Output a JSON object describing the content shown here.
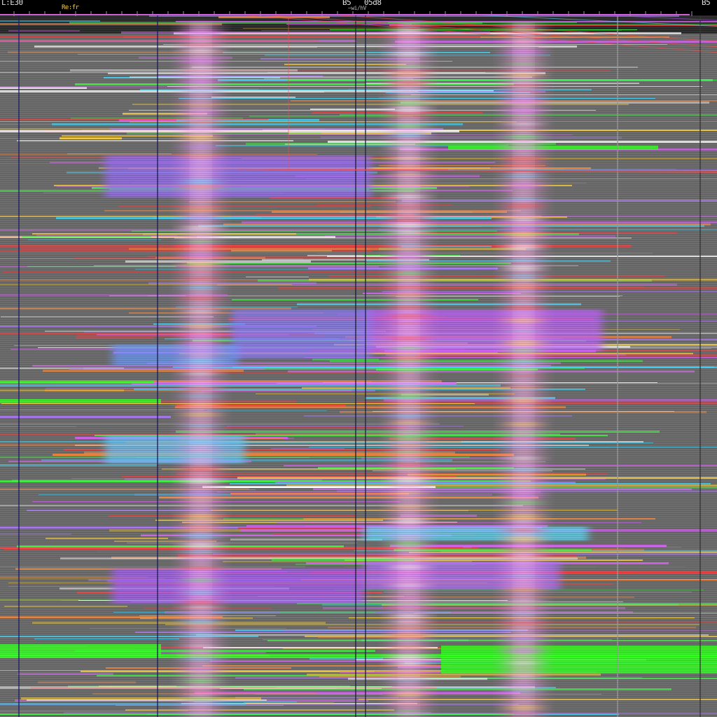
{
  "header": {
    "left_label": "L:E30",
    "left_sublabel": "Re:fr",
    "center_label": "B5",
    "center_label_2": "05d8",
    "center_sublabel": "~wi/hV",
    "right_label": "B5"
  },
  "colors": {
    "background": "#6a6a6a",
    "header": "#000000",
    "ruler_line": "#d062d8",
    "band_palette": [
      "#ff3b3b",
      "#38ff3b",
      "#3bd9ff",
      "#e062ff",
      "#ffd23b",
      "#ff8a3b",
      "#b07aff",
      "#ffffff"
    ],
    "column_glow": "#ff9ee8"
  },
  "glow_columns": [
    {
      "name": "column-glow-1",
      "center_fraction": 0.28
    },
    {
      "name": "column-glow-2",
      "center_fraction": 0.57
    },
    {
      "name": "column-glow-3",
      "center_fraction": 0.73
    }
  ]
}
